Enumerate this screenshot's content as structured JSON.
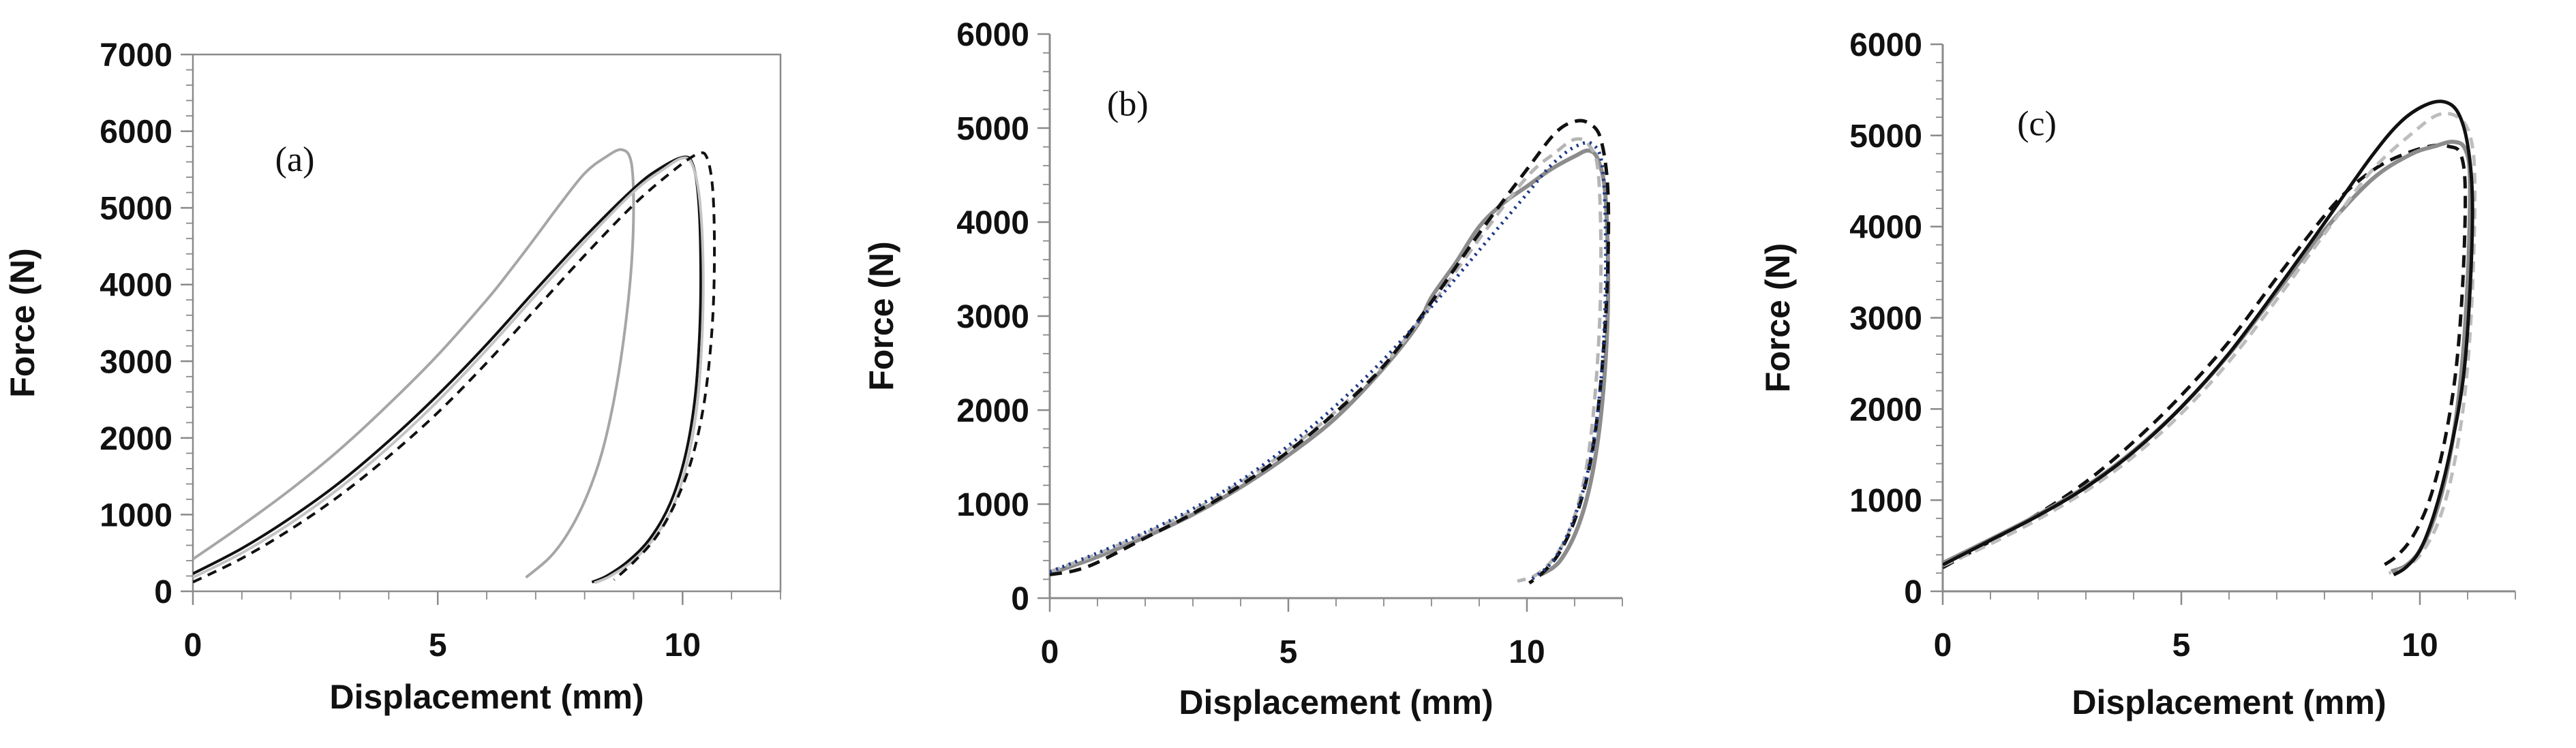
{
  "chart_data": [
    {
      "id": "a",
      "type": "line",
      "panel_label": "(a)",
      "xlabel": "Displacement (mm)",
      "ylabel": "Force (N)",
      "xlim": [
        0,
        12
      ],
      "ylim": [
        0,
        7000
      ],
      "x_ticks": [
        0,
        5,
        10
      ],
      "y_ticks": [
        0,
        1000,
        2000,
        3000,
        4000,
        5000,
        6000,
        7000
      ],
      "frame": true,
      "series": [
        {
          "name": "gray solid",
          "color": "#a6a6a6",
          "width": 4,
          "dash": "",
          "x": [
            0,
            1,
            2,
            3,
            4,
            5,
            6,
            6.5,
            7,
            7.5,
            8,
            8.4,
            8.75,
            8.95,
            9.0,
            8.95,
            8.8,
            8.6,
            8.35,
            8.05,
            7.7,
            7.3,
            6.8
          ],
          "y": [
            420,
            860,
            1330,
            1850,
            2440,
            3080,
            3800,
            4200,
            4620,
            5050,
            5450,
            5650,
            5760,
            5600,
            5000,
            4200,
            3300,
            2500,
            1800,
            1250,
            800,
            450,
            180
          ]
        },
        {
          "name": "black solid",
          "color": "#111111",
          "width": 4,
          "dash": "",
          "x": [
            0,
            1,
            2,
            3,
            4,
            5,
            6,
            7,
            8,
            9,
            9.5,
            10.0,
            10.2,
            10.32,
            10.37,
            10.35,
            10.25,
            10.05,
            9.75,
            9.35,
            8.9,
            8.45,
            8.15
          ],
          "y": [
            230,
            560,
            960,
            1420,
            1960,
            2560,
            3220,
            3930,
            4620,
            5250,
            5500,
            5660,
            5580,
            5150,
            4300,
            3400,
            2500,
            1750,
            1150,
            700,
            400,
            200,
            120
          ]
        },
        {
          "name": "light gray solid",
          "color": "#c4c4c4",
          "width": 4,
          "dash": "",
          "x": [
            0,
            1,
            2,
            3,
            4,
            5,
            6,
            7,
            8,
            9,
            9.6,
            10.0,
            10.2,
            10.35,
            10.42,
            10.4,
            10.3,
            10.1,
            9.8,
            9.4,
            8.95,
            8.5,
            8.2
          ],
          "y": [
            180,
            500,
            890,
            1350,
            1880,
            2480,
            3150,
            3860,
            4560,
            5210,
            5500,
            5650,
            5560,
            5100,
            4250,
            3350,
            2450,
            1700,
            1100,
            680,
            380,
            190,
            110
          ]
        },
        {
          "name": "black dashed",
          "color": "#111111",
          "width": 4,
          "dash": "14,10",
          "x": [
            0,
            1,
            2,
            3,
            4,
            5,
            6,
            7,
            8,
            9,
            9.8,
            10.3,
            10.5,
            10.62,
            10.65,
            10.6,
            10.45,
            10.2,
            9.85,
            9.45,
            9.0,
            8.6
          ],
          "y": [
            120,
            430,
            810,
            1250,
            1760,
            2330,
            2980,
            3680,
            4380,
            5040,
            5480,
            5700,
            5650,
            5200,
            4300,
            3400,
            2500,
            1750,
            1150,
            700,
            380,
            150
          ]
        }
      ]
    },
    {
      "id": "b",
      "type": "line",
      "panel_label": "(b)",
      "xlabel": "Displacement (mm)",
      "ylabel": "Force (N)",
      "xlim": [
        0,
        12
      ],
      "ylim": [
        0,
        6000
      ],
      "x_ticks": [
        0,
        5,
        10
      ],
      "y_ticks": [
        0,
        1000,
        2000,
        3000,
        4000,
        5000,
        6000
      ],
      "frame": false,
      "series": [
        {
          "name": "gray solid",
          "color": "#8c8c8c",
          "width": 6,
          "dash": "",
          "x": [
            0,
            1,
            2,
            3,
            4,
            5,
            6,
            7,
            7.7,
            8,
            8.5,
            9,
            9.5,
            10,
            10.5,
            11,
            11.3,
            11.5,
            11.65,
            11.7,
            11.6,
            11.4,
            11.1,
            10.7,
            10.3
          ],
          "y": [
            260,
            440,
            650,
            890,
            1180,
            1520,
            1920,
            2450,
            2900,
            3200,
            3560,
            3950,
            4200,
            4380,
            4560,
            4700,
            4760,
            4650,
            4250,
            3200,
            2200,
            1400,
            800,
            400,
            250
          ]
        },
        {
          "name": "light gray dashed",
          "color": "#b5b5b5",
          "width": 5,
          "dash": "16,10",
          "x": [
            0,
            1,
            2,
            3,
            4,
            5,
            6,
            7,
            8,
            9,
            10,
            10.6,
            11.0,
            11.3,
            11.5,
            11.55,
            11.45,
            11.25,
            10.95,
            10.6,
            10.2,
            9.8
          ],
          "y": [
            280,
            470,
            690,
            930,
            1230,
            1580,
            1990,
            2480,
            3120,
            3820,
            4480,
            4740,
            4880,
            4820,
            4500,
            3400,
            2300,
            1400,
            800,
            450,
            250,
            180
          ]
        },
        {
          "name": "black dashed",
          "color": "#111111",
          "width": 5,
          "dash": "18,11",
          "x": [
            0,
            0.5,
            1,
            2,
            3,
            4,
            5,
            6,
            7,
            8,
            9,
            10,
            10.6,
            11.0,
            11.3,
            11.55,
            11.7,
            11.68,
            11.55,
            11.35,
            11.05,
            10.7,
            10.35,
            10.05
          ],
          "y": [
            250,
            290,
            380,
            640,
            900,
            1200,
            1560,
            1980,
            2470,
            3150,
            3880,
            4560,
            4950,
            5070,
            5050,
            4880,
            4300,
            3300,
            2300,
            1500,
            900,
            500,
            280,
            160
          ]
        },
        {
          "name": "blue dotted",
          "color": "#1f3a8a",
          "width": 5,
          "dash": "3,7",
          "x": [
            0,
            1,
            2,
            3,
            4,
            5,
            6,
            7,
            8,
            9,
            10,
            10.5,
            11,
            11.4,
            11.6,
            11.65,
            11.55,
            11.3,
            10.95,
            10.55,
            10.1
          ],
          "y": [
            280,
            480,
            700,
            950,
            1250,
            1620,
            2050,
            2540,
            3100,
            3700,
            4300,
            4600,
            4800,
            4820,
            4500,
            3400,
            2300,
            1400,
            800,
            400,
            200
          ]
        }
      ]
    },
    {
      "id": "c",
      "type": "line",
      "panel_label": "(c)",
      "xlabel": "Displacement (mm)",
      "ylabel": "Force (N)",
      "xlim": [
        0,
        12
      ],
      "ylim": [
        0,
        6000
      ],
      "x_ticks": [
        0,
        5,
        10
      ],
      "y_ticks": [
        0,
        1000,
        2000,
        3000,
        4000,
        5000,
        6000
      ],
      "frame": false,
      "series": [
        {
          "name": "black dashed",
          "color": "#111111",
          "width": 5,
          "dash": "18,11",
          "x": [
            0,
            1,
            2,
            3,
            4,
            5,
            6,
            7,
            8,
            8.6,
            9.2,
            9.8,
            10.3,
            10.6,
            10.85,
            10.95,
            10.9,
            10.75,
            10.5,
            10.2,
            9.85,
            9.5,
            9.15
          ],
          "y": [
            260,
            550,
            850,
            1200,
            1640,
            2150,
            2740,
            3440,
            4120,
            4450,
            4680,
            4820,
            4890,
            4880,
            4800,
            4400,
            3400,
            2400,
            1600,
            1000,
            600,
            380,
            260
          ]
        },
        {
          "name": "gray solid",
          "color": "#8c8c8c",
          "width": 6,
          "dash": "",
          "x": [
            0,
            1,
            2,
            3,
            4,
            5,
            6,
            7,
            8,
            9,
            9.8,
            10.3,
            10.7,
            10.95,
            11.05,
            11.0,
            10.85,
            10.6,
            10.3,
            10.0,
            9.7,
            9.4
          ],
          "y": [
            310,
            570,
            840,
            1150,
            1540,
            2020,
            2600,
            3280,
            3960,
            4520,
            4790,
            4880,
            4930,
            4850,
            4500,
            3400,
            2300,
            1400,
            800,
            450,
            280,
            220
          ]
        },
        {
          "name": "light gray dashed",
          "color": "#bdbdbd",
          "width": 5,
          "dash": "16,10",
          "x": [
            0,
            1,
            2,
            3,
            4,
            5,
            6,
            7,
            8,
            9,
            9.9,
            10.4,
            10.8,
            11.05,
            11.15,
            11.1,
            10.95,
            10.7,
            10.4,
            10.05,
            9.7,
            9.35
          ],
          "y": [
            280,
            520,
            790,
            1100,
            1480,
            1950,
            2520,
            3200,
            3920,
            4620,
            5050,
            5230,
            5200,
            5000,
            4500,
            3300,
            2200,
            1350,
            780,
            430,
            260,
            200
          ]
        },
        {
          "name": "black solid",
          "color": "#111111",
          "width": 5,
          "dash": "",
          "x": [
            0,
            1,
            2,
            3,
            4,
            5,
            6,
            7,
            8,
            9,
            9.6,
            10.1,
            10.5,
            10.8,
            11.0,
            11.1,
            11.05,
            10.9,
            10.6,
            10.3,
            10.0,
            9.7,
            9.45
          ],
          "y": [
            290,
            560,
            830,
            1140,
            1530,
            2020,
            2610,
            3310,
            4040,
            4780,
            5150,
            5330,
            5370,
            5250,
            4900,
            4300,
            3300,
            2300,
            1450,
            850,
            450,
            260,
            180
          ]
        }
      ]
    }
  ]
}
